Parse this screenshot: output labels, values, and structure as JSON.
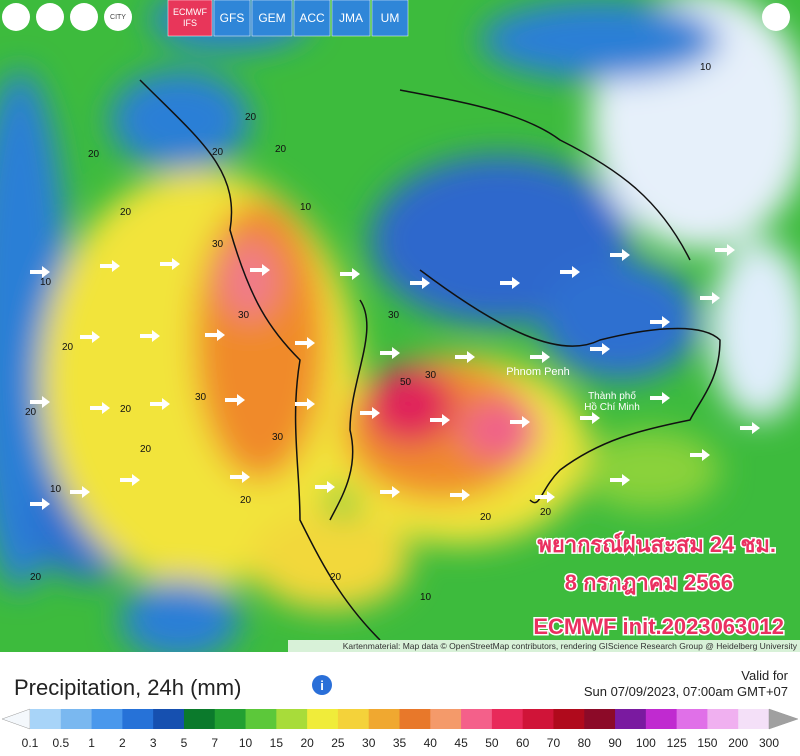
{
  "toolbar": {
    "city": "CITY",
    "models": [
      {
        "label": "ECMWF",
        "sublabel": "IFS",
        "active": true
      },
      {
        "label": "GFS",
        "active": false
      },
      {
        "label": "GEM",
        "active": false
      },
      {
        "label": "ACC",
        "active": false
      },
      {
        "label": "JMA",
        "active": false
      },
      {
        "label": "UM",
        "active": false
      }
    ]
  },
  "map": {
    "contour_labels": [
      "20",
      "20",
      "10",
      "20",
      "20",
      "30",
      "30",
      "30",
      "20",
      "10",
      "20",
      "20",
      "30",
      "50",
      "30",
      "30",
      "20",
      "10",
      "20",
      "20",
      "20",
      "20",
      "10",
      "20",
      "10",
      "20"
    ],
    "places": [
      "Phnom Penh",
      "Thành phố",
      "Hồ Chí Minh"
    ],
    "overlay": [
      "พยากรณ์ฝนสะสม 24 ชม.",
      "8 กรกฎาคม 2566",
      "ECMWF init.2023063012"
    ],
    "attribution": "Kartenmaterial: Map data © OpenStreetMap contributors, rendering GIScience Research Group @ Heidelberg University"
  },
  "legend": {
    "title": "Precipitation, 24h (mm)",
    "valid_label": "Valid for",
    "valid_time": "Sun 07/09/2023, 07:00am GMT+07",
    "scale": [
      0.1,
      0.5,
      1,
      2,
      3,
      5,
      7,
      10,
      15,
      20,
      25,
      30,
      35,
      40,
      45,
      50,
      60,
      70,
      80,
      90,
      100,
      125,
      150,
      200,
      300
    ],
    "colors": [
      "#f4f8fc",
      "#a8d4f8",
      "#7ab8f0",
      "#4a98ec",
      "#2672d8",
      "#1650b0",
      "#0b7a2c",
      "#22a032",
      "#5cc83a",
      "#a8dc3a",
      "#f0ec3a",
      "#f4d23a",
      "#f0a830",
      "#e8782a",
      "#f49a6a",
      "#f4608a",
      "#e82a5a",
      "#d01438",
      "#b00a1c",
      "#8c0a28",
      "#7a1aa0",
      "#c02ad0",
      "#e070e8",
      "#f0b0f0",
      "#f4e0f8",
      "#a0a0a0"
    ]
  }
}
